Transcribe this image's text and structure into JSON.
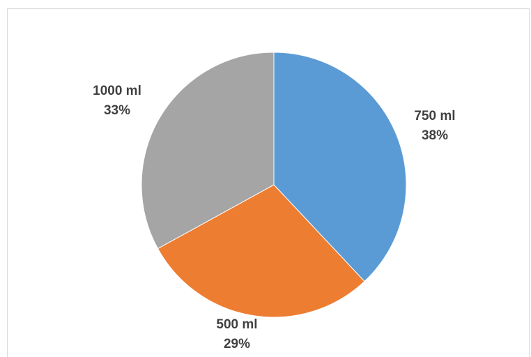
{
  "chart_data": {
    "type": "pie",
    "title": "",
    "slices": [
      {
        "name": "750 ml",
        "value": 38,
        "label_pct": "38%",
        "color": "#5b9bd5"
      },
      {
        "name": "500 ml",
        "value": 29,
        "label_pct": "29%",
        "color": "#ed7d31"
      },
      {
        "name": "1000 ml",
        "value": 33,
        "label_pct": "33%",
        "color": "#a5a5a5"
      }
    ],
    "start_angle_deg": 0,
    "direction": "clockwise",
    "legend": "none"
  }
}
